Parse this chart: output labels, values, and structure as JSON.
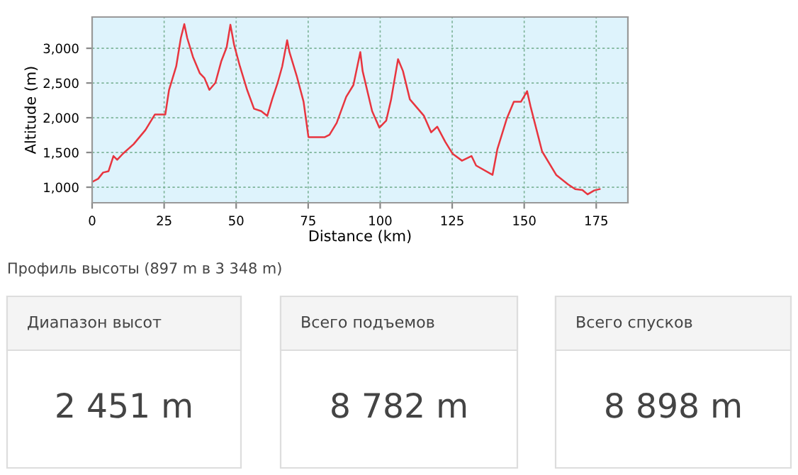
{
  "chart_data": [
    {
      "type": "line",
      "xlabel": "Distance (km)",
      "ylabel": "Altitude (m)",
      "annotations": [
        "Профиль высоты (897 m в 3 348 m)"
      ],
      "xlim": [
        0,
        186
      ],
      "ylim": [
        776,
        3450
      ],
      "xticks": [
        0,
        25,
        50,
        75,
        100,
        125,
        150,
        175
      ],
      "yticks": [
        {
          "value": 1000,
          "label": "1,000"
        },
        {
          "value": 1500,
          "label": "1,500"
        },
        {
          "value": 2000,
          "label": "2,000"
        },
        {
          "value": 2500,
          "label": "2,500"
        },
        {
          "value": 3000,
          "label": "3,000"
        }
      ],
      "grid": true,
      "marker": "none",
      "line_style": "solid",
      "legend": false,
      "series": [
        {
          "color": "#e8353f",
          "x": [
            0,
            2.1,
            3.8,
            5.7,
            7.4,
            8.7,
            10.7,
            14.4,
            18.5,
            21.8,
            25.4,
            26.7,
            29.2,
            30.8,
            32,
            33,
            35,
            37.4,
            39,
            40.7,
            42.8,
            44.8,
            46.7,
            48,
            49.3,
            51.3,
            53.8,
            56.2,
            58.7,
            60.8,
            62.5,
            64.4,
            66,
            67.7,
            68.5,
            71,
            73.4,
            75.1,
            80.8,
            82.4,
            84.9,
            88.2,
            90.7,
            93.1,
            93.9,
            97.2,
            99.7,
            102.1,
            103.8,
            106.2,
            107.9,
            110.3,
            115.2,
            117.7,
            119.8,
            122.6,
            125.1,
            128.4,
            131.7,
            133.3,
            139.0,
            140.7,
            144,
            146.4,
            148.9,
            151,
            152.2,
            156.2,
            161.1,
            165.2,
            167.7,
            170.2,
            172,
            174.3,
            176.2
          ],
          "values": [
            1075,
            1122,
            1211,
            1231,
            1449,
            1394,
            1483,
            1619,
            1823,
            2047,
            2047,
            2401,
            2741,
            3149,
            3348,
            3149,
            2877,
            2639,
            2571,
            2401,
            2503,
            2809,
            3013,
            3339,
            3047,
            2741,
            2401,
            2129,
            2095,
            2027,
            2265,
            2503,
            2741,
            3115,
            2945,
            2605,
            2231,
            1721,
            1721,
            1755,
            1925,
            2300,
            2470,
            2945,
            2673,
            2096,
            1857,
            1959,
            2265,
            2843,
            2673,
            2265,
            2027,
            1790,
            1871,
            1653,
            1484,
            1382,
            1449,
            1312,
            1177,
            1551,
            1994,
            2231,
            2231,
            2382,
            2163,
            1516,
            1177,
            1041,
            973,
            959,
            897,
            953,
            973
          ]
        }
      ]
    },
    {
      "type": "other",
      "annotations": [
        "Диапазон высот",
        "2 451 m",
        "Всего подъемов",
        "8 782 m",
        "Всего спусков",
        "8 898 m"
      ]
    }
  ]
}
